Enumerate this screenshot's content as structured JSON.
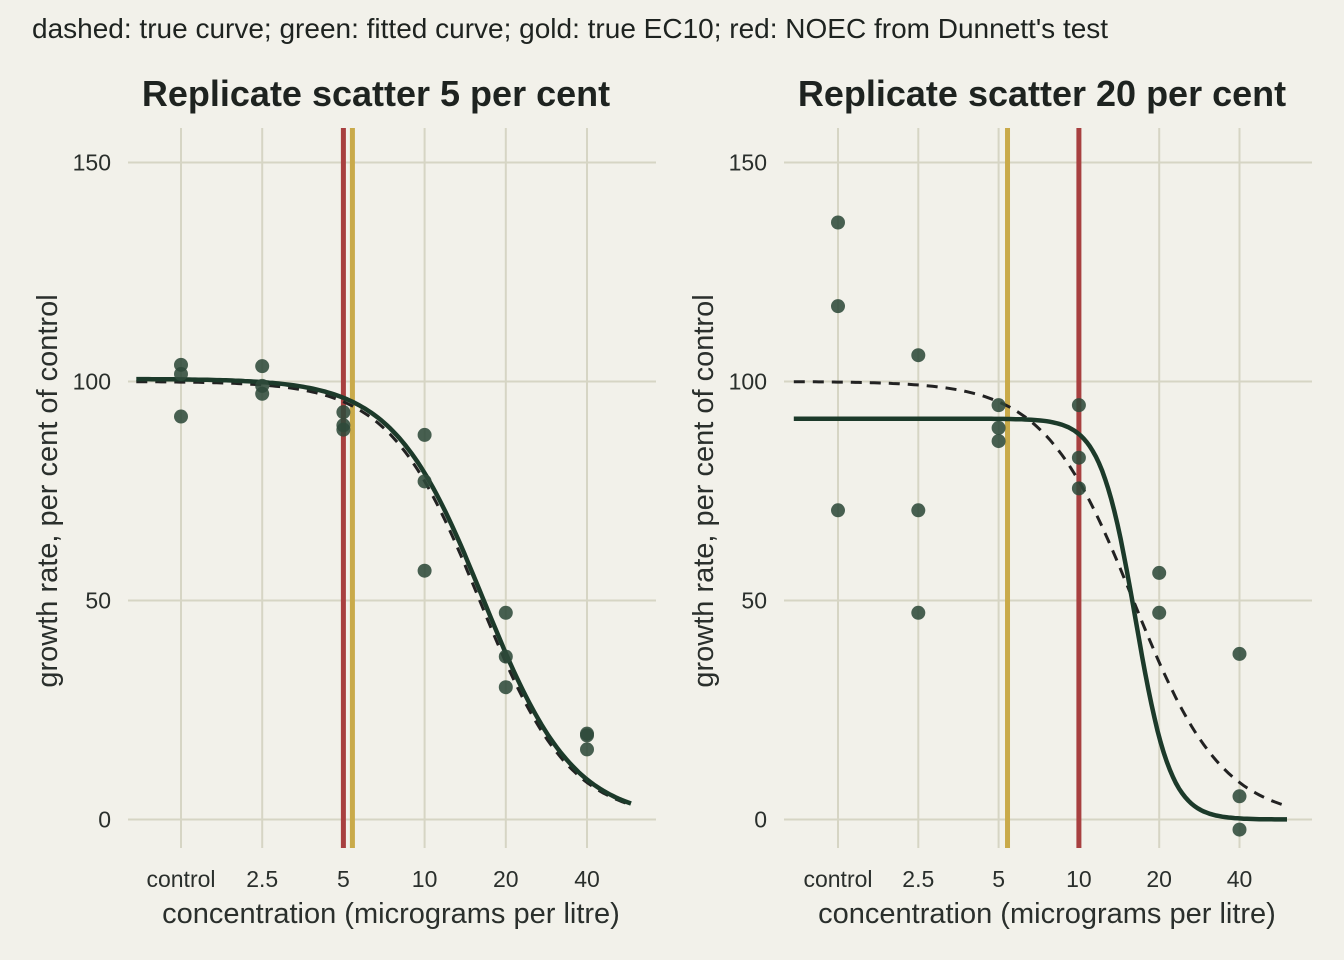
{
  "caption": "dashed: true curve; green: fitted curve; gold: true EC10; red: NOEC from Dunnett's test",
  "colors": {
    "background": "#f2f1ea",
    "grid": "#d6d5c4",
    "points": "#2f4a3a",
    "fitted_curve": "#1c3a2a",
    "true_curve": "#222222",
    "ec10_line": "#c9aa4a",
    "noec_line": "#a84040"
  },
  "chart_data": [
    {
      "type": "scatter",
      "title": "Replicate scatter 5 per cent",
      "xlabel": "concentration (micrograms per litre)",
      "ylabel": "growth rate, per cent of control",
      "x_scale": "log2 (control placed one step left of 2.5)",
      "x_ticks": [
        "control",
        "2.5",
        "5",
        "10",
        "20",
        "40"
      ],
      "y_ticks": [
        "0",
        "50",
        "100",
        "150"
      ],
      "ylim": [
        -6,
        158
      ],
      "grid": true,
      "points": [
        {
          "x": "control",
          "y": 103.8
        },
        {
          "x": "control",
          "y": 101.7
        },
        {
          "x": "control",
          "y": 92.0
        },
        {
          "x": "2.5",
          "y": 103.5
        },
        {
          "x": "2.5",
          "y": 99.0
        },
        {
          "x": "2.5",
          "y": 97.2
        },
        {
          "x": "5",
          "y": 93.0
        },
        {
          "x": "5",
          "y": 90.0
        },
        {
          "x": "5",
          "y": 89.0
        },
        {
          "x": "10",
          "y": 87.8
        },
        {
          "x": "10",
          "y": 77.2
        },
        {
          "x": "10",
          "y": 56.8
        },
        {
          "x": "20",
          "y": 47.2
        },
        {
          "x": "20",
          "y": 37.2
        },
        {
          "x": "20",
          "y": 30.2
        },
        {
          "x": "40",
          "y": 19.6
        },
        {
          "x": "40",
          "y": 19.2
        },
        {
          "x": "40",
          "y": 16.0
        }
      ],
      "true_curve": {
        "top": 100,
        "ec50": 16.0,
        "slope": 2.6
      },
      "fitted_curve": {
        "top": 100.6,
        "ec50": 16.5,
        "slope": 2.6
      },
      "true_ec10": 5.4,
      "noec": 5
    },
    {
      "type": "scatter",
      "title": "Replicate scatter 20 per cent",
      "xlabel": "concentration (micrograms per litre)",
      "ylabel": "growth rate, per cent of control",
      "x_scale": "log2 (control placed one step left of 2.5)",
      "x_ticks": [
        "control",
        "2.5",
        "5",
        "10",
        "20",
        "40"
      ],
      "y_ticks": [
        "0",
        "50",
        "100",
        "150"
      ],
      "ylim": [
        -6,
        158
      ],
      "grid": true,
      "points": [
        {
          "x": "control",
          "y": 136.3
        },
        {
          "x": "control",
          "y": 117.2
        },
        {
          "x": "control",
          "y": 70.6
        },
        {
          "x": "2.5",
          "y": 106.0
        },
        {
          "x": "2.5",
          "y": 70.6
        },
        {
          "x": "2.5",
          "y": 47.2
        },
        {
          "x": "5",
          "y": 94.6
        },
        {
          "x": "5",
          "y": 89.4
        },
        {
          "x": "5",
          "y": 86.4
        },
        {
          "x": "10",
          "y": 94.6
        },
        {
          "x": "10",
          "y": 82.6
        },
        {
          "x": "10",
          "y": 75.6
        },
        {
          "x": "20",
          "y": 56.3
        },
        {
          "x": "20",
          "y": 47.2
        },
        {
          "x": "40",
          "y": 37.8
        },
        {
          "x": "40",
          "y": 5.3
        },
        {
          "x": "40",
          "y": -2.3
        }
      ],
      "true_curve": {
        "top": 100,
        "ec50": 16.0,
        "slope": 2.6
      },
      "fitted_curve": {
        "top": 91.5,
        "ec50": 16.3,
        "slope": 6.6
      },
      "true_ec10": 5.4,
      "noec": 10
    }
  ]
}
